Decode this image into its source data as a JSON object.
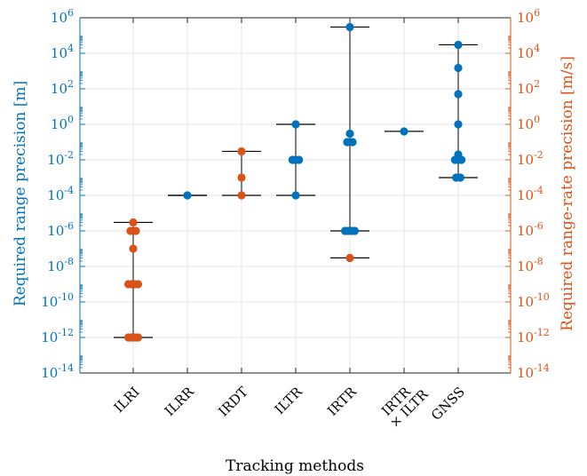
{
  "chart_data": {
    "type": "scatter",
    "xlabel": "Tracking methods",
    "ylabel_left": "Required range precision [m]",
    "ylabel_right": "Required range-rate precision [m/s]",
    "yscale": "log",
    "ylim": [
      1e-14,
      1000000.0
    ],
    "grid": true,
    "colors": {
      "range": "#0072BD",
      "rate": "#D95319",
      "whisker": "#000000",
      "grid": "#e6e6e6"
    },
    "y_tick_labels": [
      {
        "base": "10",
        "exp": "-14"
      },
      {
        "base": "10",
        "exp": "-12"
      },
      {
        "base": "10",
        "exp": "-10"
      },
      {
        "base": "10",
        "exp": "-8"
      },
      {
        "base": "10",
        "exp": "-6"
      },
      {
        "base": "10",
        "exp": "-4"
      },
      {
        "base": "10",
        "exp": "-2"
      },
      {
        "base": "10",
        "exp": "0"
      },
      {
        "base": "10",
        "exp": "2"
      },
      {
        "base": "10",
        "exp": "4"
      },
      {
        "base": "10",
        "exp": "6"
      }
    ],
    "categories": [
      {
        "lines": [
          "ILRI"
        ]
      },
      {
        "lines": [
          "ILRR"
        ]
      },
      {
        "lines": [
          "IRDT"
        ]
      },
      {
        "lines": [
          "ILTR"
        ]
      },
      {
        "lines": [
          "IRTR"
        ]
      },
      {
        "lines": [
          "IRTR",
          "× ILTR"
        ]
      },
      {
        "lines": [
          "GNSS"
        ]
      }
    ],
    "series": [
      {
        "name": "range",
        "axis": "left",
        "groups": [
          {
            "category": "ILRI",
            "whisker": null,
            "points": []
          },
          {
            "category": "ILRR",
            "whisker": [
              0.0001,
              0.0001
            ],
            "points": [
              {
                "y": 0.0001,
                "offset": 0
              }
            ]
          },
          {
            "category": "IRDT",
            "whisker": null,
            "points": []
          },
          {
            "category": "ILTR",
            "whisker": [
              0.0001,
              1
            ],
            "points": [
              {
                "y": 0.0001,
                "offset": 0
              },
              {
                "y": 0.01,
                "offset": -0.06
              },
              {
                "y": 0.01,
                "offset": 0
              },
              {
                "y": 0.01,
                "offset": 0.06
              },
              {
                "y": 1,
                "offset": 0
              }
            ]
          },
          {
            "category": "IRTR",
            "whisker": [
              1e-06,
              300000.0
            ],
            "points": [
              {
                "y": 1e-06,
                "offset": -0.09
              },
              {
                "y": 1e-06,
                "offset": -0.03
              },
              {
                "y": 1e-06,
                "offset": 0.03
              },
              {
                "y": 1e-06,
                "offset": 0.09
              },
              {
                "y": 0.1,
                "offset": -0.05
              },
              {
                "y": 0.1,
                "offset": 0.05
              },
              {
                "y": 0.3,
                "offset": 0
              },
              {
                "y": 300000.0,
                "offset": 0
              }
            ]
          },
          {
            "category": "IRTR × ILTR",
            "whisker": [
              0.4,
              0.4
            ],
            "points": [
              {
                "y": 0.4,
                "offset": 0
              }
            ]
          },
          {
            "category": "GNSS",
            "whisker": [
              0.001,
              30000
            ],
            "points": [
              {
                "y": 0.001,
                "offset": -0.04
              },
              {
                "y": 0.001,
                "offset": 0.04
              },
              {
                "y": 0.01,
                "offset": -0.06
              },
              {
                "y": 0.01,
                "offset": 0
              },
              {
                "y": 0.01,
                "offset": 0.06
              },
              {
                "y": 0.02,
                "offset": 0
              },
              {
                "y": 1,
                "offset": 0
              },
              {
                "y": 50,
                "offset": 0
              },
              {
                "y": 1500,
                "offset": 0
              },
              {
                "y": 30000,
                "offset": 0
              }
            ]
          }
        ]
      },
      {
        "name": "range-rate",
        "axis": "right",
        "groups": [
          {
            "category": "ILRI",
            "whisker": [
              1e-12,
              3e-06
            ],
            "points": [
              {
                "y": 1e-12,
                "offset": -0.09
              },
              {
                "y": 1e-12,
                "offset": -0.03
              },
              {
                "y": 1e-12,
                "offset": 0.03
              },
              {
                "y": 1e-12,
                "offset": 0.09
              },
              {
                "y": 1e-09,
                "offset": -0.09
              },
              {
                "y": 1e-09,
                "offset": -0.03
              },
              {
                "y": 1e-09,
                "offset": 0.03
              },
              {
                "y": 1e-09,
                "offset": 0.09
              },
              {
                "y": 1e-07,
                "offset": 0
              },
              {
                "y": 1e-06,
                "offset": -0.05
              },
              {
                "y": 1e-06,
                "offset": 0.05
              },
              {
                "y": 3e-06,
                "offset": 0
              }
            ]
          },
          {
            "category": "ILRR",
            "whisker": null,
            "points": []
          },
          {
            "category": "IRDT",
            "whisker": [
              0.0001,
              0.03
            ],
            "points": [
              {
                "y": 0.0001,
                "offset": 0
              },
              {
                "y": 0.001,
                "offset": 0
              },
              {
                "y": 0.03,
                "offset": 0
              }
            ]
          },
          {
            "category": "ILTR",
            "whisker": null,
            "points": []
          },
          {
            "category": "IRTR",
            "whisker": [
              3e-08,
              3e-08
            ],
            "points": [
              {
                "y": 3e-08,
                "offset": 0
              }
            ]
          },
          {
            "category": "IRTR × ILTR",
            "whisker": null,
            "points": []
          },
          {
            "category": "GNSS",
            "whisker": null,
            "points": []
          }
        ]
      }
    ]
  }
}
